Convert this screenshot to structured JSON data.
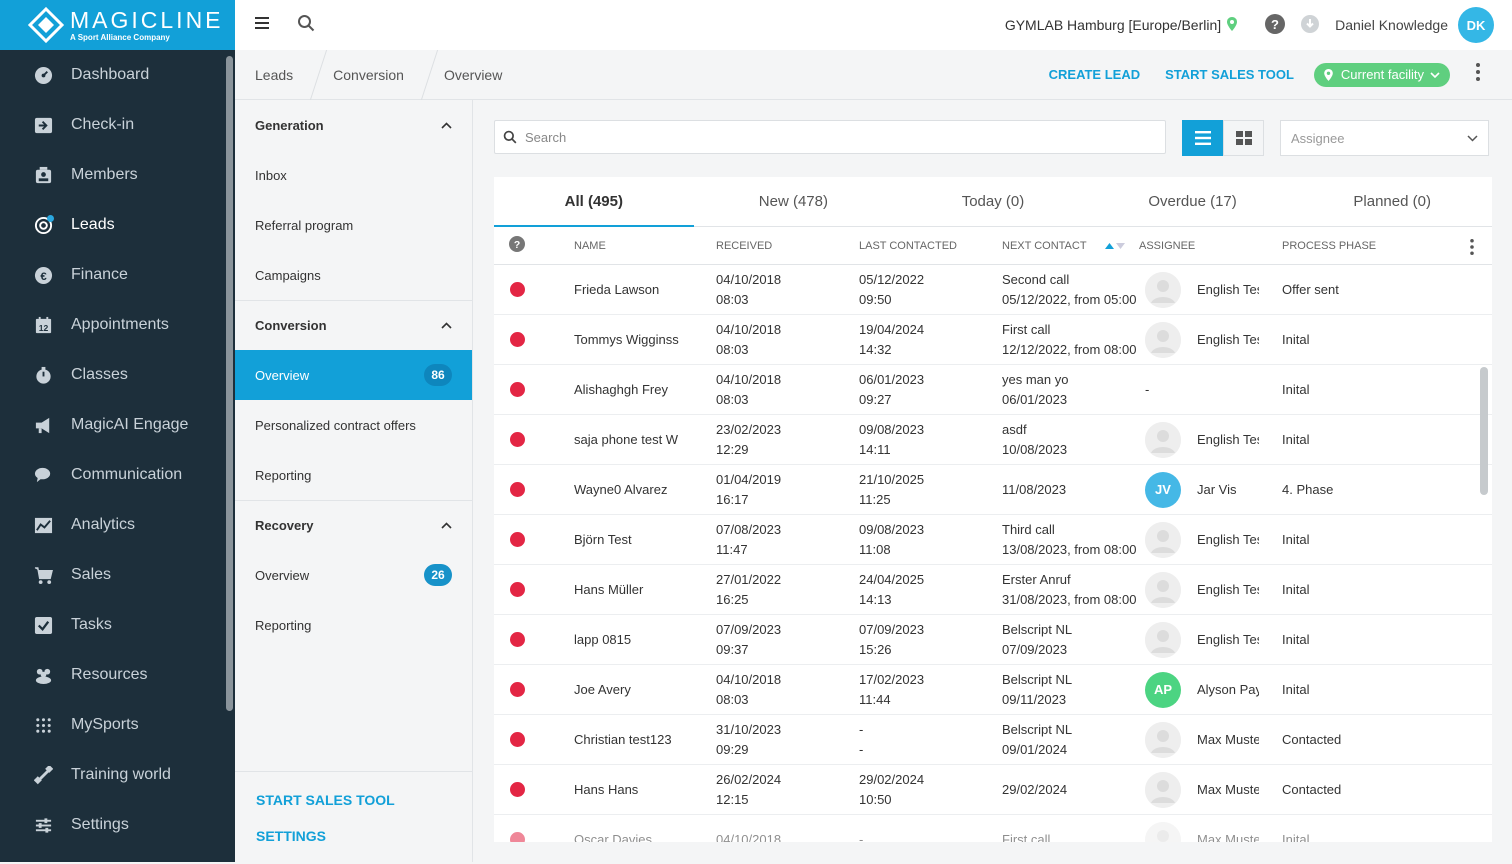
{
  "brand": {
    "name": "MAGICLINE",
    "tagline": "A Sport Alliance Company"
  },
  "nav": [
    {
      "label": "Dashboard",
      "icon": "dashboard-icon"
    },
    {
      "label": "Check-in",
      "icon": "checkin-icon"
    },
    {
      "label": "Members",
      "icon": "members-icon"
    },
    {
      "label": "Leads",
      "icon": "leads-icon",
      "active": true
    },
    {
      "label": "Finance",
      "icon": "finance-icon"
    },
    {
      "label": "Appointments",
      "icon": "appointments-icon"
    },
    {
      "label": "Classes",
      "icon": "classes-icon"
    },
    {
      "label": "MagicAI Engage",
      "icon": "megaphone-icon"
    },
    {
      "label": "Communication",
      "icon": "communication-icon"
    },
    {
      "label": "Analytics",
      "icon": "analytics-icon"
    },
    {
      "label": "Sales",
      "icon": "cart-icon"
    },
    {
      "label": "Tasks",
      "icon": "tasks-icon"
    },
    {
      "label": "Resources",
      "icon": "resources-icon"
    },
    {
      "label": "MySports",
      "icon": "mysports-icon"
    },
    {
      "label": "Training world",
      "icon": "training-icon"
    },
    {
      "label": "Settings",
      "icon": "settings-icon"
    }
  ],
  "topbar": {
    "facility": "GYMLAB Hamburg [Europe/Berlin]",
    "user": "Daniel Knowledge",
    "initials": "DK"
  },
  "breadcrumb": [
    "Leads",
    "Conversion",
    "Overview"
  ],
  "actions": {
    "create_lead": "CREATE LEAD",
    "start_sales_tool": "START SALES TOOL",
    "facility_filter": "Current facility"
  },
  "subnav": {
    "generation": {
      "title": "Generation",
      "items": [
        "Inbox",
        "Referral program",
        "Campaigns"
      ]
    },
    "conversion": {
      "title": "Conversion",
      "items": [
        {
          "label": "Overview",
          "badge": "86"
        },
        {
          "label": "Personalized contract offers"
        },
        {
          "label": "Reporting"
        }
      ]
    },
    "recovery": {
      "title": "Recovery",
      "items": [
        {
          "label": "Overview",
          "badge": "26"
        },
        {
          "label": "Reporting"
        }
      ]
    },
    "bottom": {
      "start_sales_tool": "START SALES TOOL",
      "settings": "SETTINGS"
    }
  },
  "search": {
    "placeholder": "Search"
  },
  "assignee": {
    "placeholder": "Assignee"
  },
  "tabs": [
    "All (495)",
    "New (478)",
    "Today (0)",
    "Overdue (17)",
    "Planned (0)"
  ],
  "columns": {
    "name": "Name",
    "received": "Received",
    "last_contacted": "Last contacted",
    "next_contact": "Next contact",
    "assignee": "Assignee",
    "process_phase": "Process phase"
  },
  "colors": {
    "accent": "#12a0d8",
    "status_dot": "#e32644",
    "facility_green": "#5fcf7f",
    "sidebar": "#1d2f3b"
  },
  "rows": [
    {
      "name": "Frieda Lawson",
      "rec": [
        "04/10/2018",
        "08:03"
      ],
      "last": [
        "05/12/2022",
        "09:50"
      ],
      "next": [
        "Second call",
        "05/12/2022, from 05:00"
      ],
      "assignee": "English Test",
      "avatar": "photo",
      "phase": "Offer sent"
    },
    {
      "name": "Tommys Wigginss",
      "rec": [
        "04/10/2018",
        "08:03"
      ],
      "last": [
        "19/04/2024",
        "14:32"
      ],
      "next": [
        "First call",
        "12/12/2022, from 08:00"
      ],
      "assignee": "English Test",
      "avatar": "photo",
      "phase": "Inital"
    },
    {
      "name": "Alishaghgh Frey",
      "rec": [
        "04/10/2018",
        "08:03"
      ],
      "last": [
        "06/01/2023",
        "09:27"
      ],
      "next": [
        "yes man yo",
        "06/01/2023"
      ],
      "assignee": "-",
      "avatar": "none",
      "phase": "Inital"
    },
    {
      "name": "saja phone test W",
      "rec": [
        "23/02/2023",
        "12:29"
      ],
      "last": [
        "09/08/2023",
        "14:11"
      ],
      "next": [
        "asdf",
        "10/08/2023"
      ],
      "assignee": "English Test",
      "avatar": "photo",
      "phase": "Inital"
    },
    {
      "name": "Wayne0 Alvarez",
      "rec": [
        "01/04/2019",
        "16:17"
      ],
      "last": [
        "21/10/2025",
        "11:25"
      ],
      "next": [
        "11/08/2023",
        ""
      ],
      "assignee": "Jar Vis",
      "avatar": "JV",
      "avatar_color": "#45b8e6",
      "phase": "4. Phase"
    },
    {
      "name": "Björn Test",
      "rec": [
        "07/08/2023",
        "11:47"
      ],
      "last": [
        "09/08/2023",
        "11:08"
      ],
      "next": [
        "Third call",
        "13/08/2023, from 08:00"
      ],
      "assignee": "English Test",
      "avatar": "photo",
      "phase": "Inital"
    },
    {
      "name": "Hans Müller",
      "rec": [
        "27/01/2022",
        "16:25"
      ],
      "last": [
        "24/04/2025",
        "14:13"
      ],
      "next": [
        "Erster Anruf",
        "31/08/2023, from 08:00"
      ],
      "assignee": "English Test",
      "avatar": "photo",
      "phase": "Inital"
    },
    {
      "name": "lapp 0815",
      "rec": [
        "07/09/2023",
        "09:37"
      ],
      "last": [
        "07/09/2023",
        "15:26"
      ],
      "next": [
        "Belscript NL",
        "07/09/2023"
      ],
      "assignee": "English Test",
      "avatar": "photo",
      "phase": "Inital"
    },
    {
      "name": "Joe Avery",
      "rec": [
        "04/10/2018",
        "08:03"
      ],
      "last": [
        "17/02/2023",
        "11:44"
      ],
      "next": [
        "Belscript NL",
        "09/11/2023"
      ],
      "assignee": "Alyson Payne",
      "avatar": "AP",
      "avatar_color": "#4cd482",
      "phase": "Inital"
    },
    {
      "name": "Christian test123",
      "rec": [
        "31/10/2023",
        "09:29"
      ],
      "last": [
        "-",
        "-"
      ],
      "next": [
        "Belscript NL",
        "09/01/2024"
      ],
      "assignee": "Max Muster",
      "avatar": "photo",
      "phase": "Contacted"
    },
    {
      "name": "Hans Hans",
      "rec": [
        "26/02/2024",
        "12:15"
      ],
      "last": [
        "29/02/2024",
        "10:50"
      ],
      "next": [
        "29/02/2024",
        ""
      ],
      "assignee": "Max Muster",
      "avatar": "photo",
      "phase": "Contacted"
    },
    {
      "name": "Oscar Davies",
      "rec": [
        "04/10/2018",
        ""
      ],
      "last": [
        "-",
        ""
      ],
      "next": [
        "First call",
        ""
      ],
      "assignee": "Max Muster",
      "avatar": "photo",
      "phase": "Inital"
    }
  ]
}
